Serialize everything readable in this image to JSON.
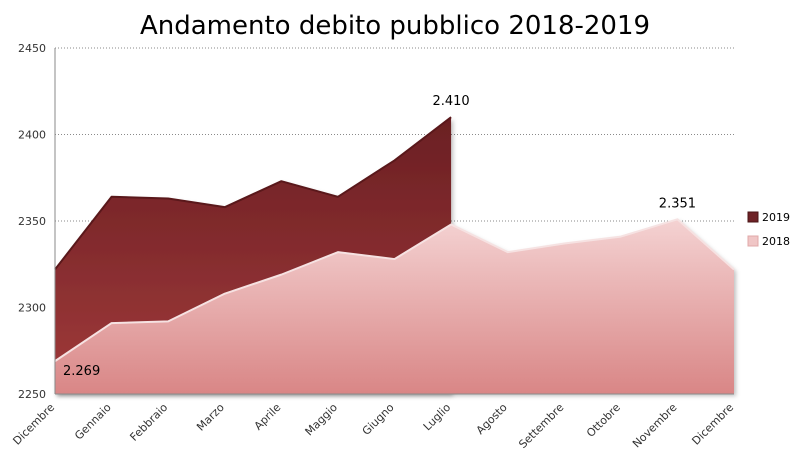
{
  "chart_data": {
    "type": "area",
    "title": "Andamento debito pubblico 2018-2019",
    "xlabel": "",
    "ylabel": "",
    "ylim": [
      2250,
      2450
    ],
    "yticks": [
      2250,
      2300,
      2350,
      2400,
      2450
    ],
    "categories": [
      "Dicembre",
      "Gennaio",
      "Febbraio",
      "Marzo",
      "Aprile",
      "Maggio",
      "Giugno",
      "Luglio",
      "Agosto",
      "Settembre",
      "Ottobre",
      "Novembre",
      "Dicembre"
    ],
    "series": [
      {
        "name": "2019",
        "color": "#7a2a2c",
        "values": [
          2322,
          2364,
          2363,
          2358,
          2373,
          2364,
          2385,
          2410,
          null,
          null,
          null,
          null,
          null
        ]
      },
      {
        "name": "2018",
        "color": "#e9b8b8",
        "values": [
          2269,
          2291,
          2292,
          2308,
          2319,
          2332,
          2328,
          2348,
          2332,
          2337,
          2341,
          2351,
          2322
        ]
      }
    ],
    "data_labels": [
      {
        "text": "2.269",
        "series": "2018",
        "index": 0
      },
      {
        "text": "2.410",
        "series": "2019",
        "index": 7
      },
      {
        "text": "2.351",
        "series": "2018",
        "index": 11
      }
    ],
    "grid": true,
    "legend": "right"
  }
}
